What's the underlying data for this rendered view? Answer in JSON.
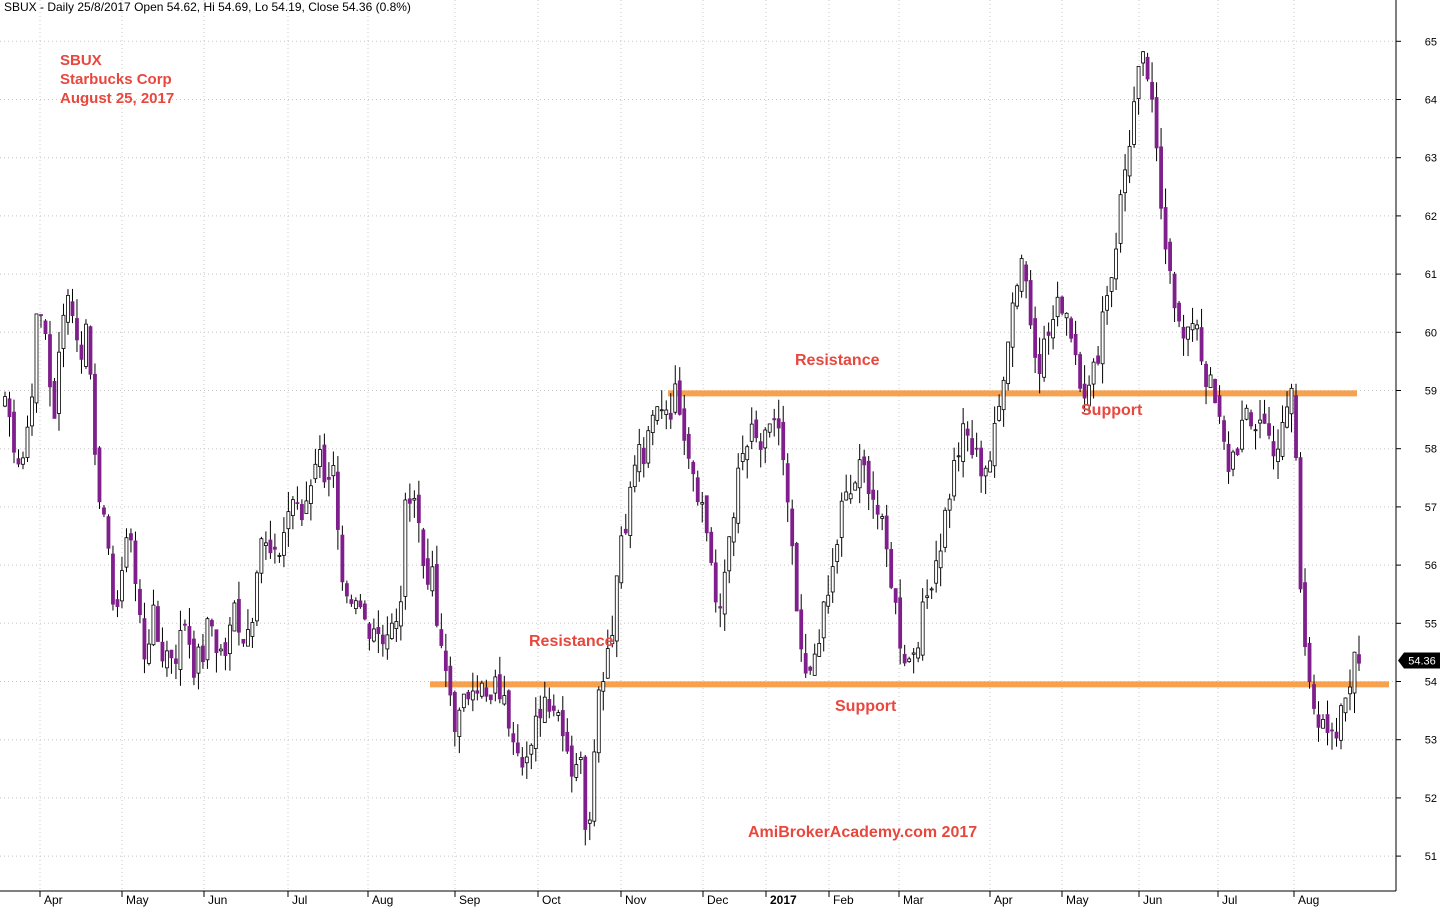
{
  "header": "SBUX - Daily 25/8/2017 Open 54.62, Hi 54.69, Lo 54.19, Close 54.36 (0.8%)",
  "titles": [
    "SBUX",
    "Starbucks Corp",
    "August 25, 2017"
  ],
  "annotations": {
    "resistance_upper": "Resistance",
    "support_upper": "Support",
    "resistance_lower": "Resistance",
    "support_lower": "Support"
  },
  "watermark": "AmiBrokerAcademy.com  2017",
  "last_price": "54.36",
  "colors": {
    "up": "#ffffff",
    "down": "#7f1f8c",
    "line": "#f7a04d",
    "text": "#e8473e",
    "grid": "#c8c8c8"
  },
  "chart_data": {
    "type": "candlestick",
    "ylim": [
      50.4,
      65.4
    ],
    "y_ticks": [
      51,
      52,
      53,
      54,
      55,
      56,
      57,
      58,
      59,
      60,
      61,
      62,
      63,
      64,
      65
    ],
    "x_ticks": [
      "Apr",
      "May",
      "Jun",
      "Jul",
      "Aug",
      "Sep",
      "Oct",
      "Nov",
      "Dec",
      "2017",
      "Feb",
      "Mar",
      "Apr",
      "May",
      "Jun",
      "Jul",
      "Aug"
    ],
    "levels": [
      {
        "price": 58.95,
        "from_month": "2016-Nov",
        "to_month": "2017-Aug"
      },
      {
        "price": 53.95,
        "from_month": "2016-Aug",
        "to_month": "2017-Aug"
      }
    ],
    "anchors": [
      [
        58.9,
        58.2,
        57.7,
        58.6,
        60.4,
        60.0,
        58.3,
        60.5,
        60.7,
        59.5
      ],
      [
        60.2,
        58.0,
        56.7,
        55.6,
        55.2,
        57.0,
        55.5,
        54.5,
        55.1,
        54.5
      ],
      [
        54.5,
        54.5,
        55.1,
        54.3,
        54.4,
        55.1,
        54.5,
        54.5,
        55.3,
        54.8
      ],
      [
        55.0,
        56.6,
        56.2,
        56.0,
        56.6,
        57.2,
        56.7,
        57.3,
        58.0,
        57.6
      ],
      [
        57.6,
        55.5,
        55.1,
        55.3,
        55.0,
        55.0,
        54.8,
        54.9,
        54.9,
        57.4
      ],
      [
        57.2,
        56.0,
        55.8,
        54.5,
        54.0,
        53.2,
        53.6,
        54.1,
        53.9,
        53.5
      ],
      [
        54.0,
        53.5,
        53.2,
        52.8,
        52.6,
        53.5,
        53.8,
        53.6,
        53.3,
        52.5
      ],
      [
        52.8,
        51.2,
        53.5,
        54.3,
        55.0,
        56.5,
        57.0,
        58.0,
        57.8,
        58.5
      ],
      [
        58.8,
        58.7,
        59.0,
        58.2,
        57.6,
        57.0,
        56.2,
        54.8,
        56.3,
        57.2
      ],
      [
        57.9,
        58.2,
        58.0,
        58.1,
        58.7,
        57.5,
        56.0,
        54.3,
        53.9,
        54.8
      ],
      [
        55.2,
        56.0,
        57.0,
        57.2,
        57.6,
        57.6,
        57.1,
        56.5,
        55.8,
        54.8
      ],
      [
        54.3,
        54.7,
        55.2,
        55.9,
        56.4,
        57.2,
        57.9,
        58.3,
        57.9,
        57.7
      ],
      [
        57.8,
        58.5,
        59.8,
        60.7,
        61.4,
        60.2,
        59.5,
        59.9,
        60.3,
        60.6
      ],
      [
        60.0,
        59.3,
        58.9,
        59.5,
        60.6,
        61.1,
        62.3,
        63.3,
        64.3,
        64.7
      ],
      [
        63.5,
        62.0,
        61.2,
        60.1,
        59.7,
        60.5,
        59.4,
        59.0,
        58.4,
        57.7
      ],
      [
        58.0,
        58.5,
        58.3,
        58.6,
        58.2,
        58.0,
        58.4,
        59.2,
        55.0,
        54.2
      ],
      [
        53.3,
        53.0,
        52.9,
        53.5,
        54.2,
        54.4
      ]
    ]
  }
}
